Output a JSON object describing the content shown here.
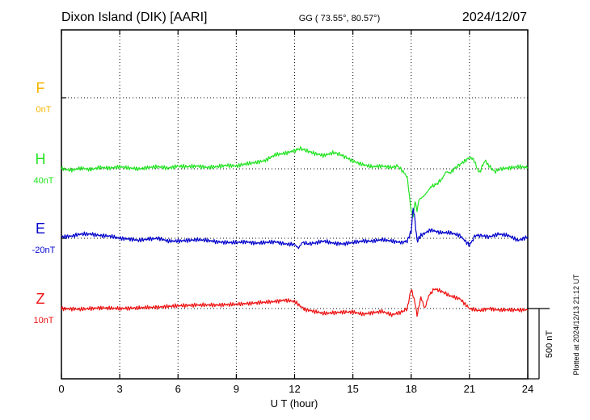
{
  "header": {
    "station": "Dixon Island (DIK)  [AARI]",
    "coords": "GG ( 73.55°,  80.57°)",
    "date": "2024/12/07"
  },
  "footer_note": "Plotted at 2024/12/13 21:12 UT",
  "scale_label": "500 nT",
  "chart_data": {
    "type": "line",
    "xlabel": "U T (hour)",
    "xlim": [
      0,
      24
    ],
    "x_ticks": [
      0,
      3,
      6,
      9,
      12,
      15,
      18,
      21,
      24
    ],
    "grid": true,
    "scale_nT": 500,
    "series": [
      {
        "name": "F",
        "baseline_label": "0nT",
        "color": "#f5b400",
        "points": []
      },
      {
        "name": "H",
        "baseline_label": "40nT",
        "color": "#22e322",
        "points": [
          [
            0,
            0
          ],
          [
            0.5,
            -10
          ],
          [
            1,
            5
          ],
          [
            1.5,
            -5
          ],
          [
            2,
            10
          ],
          [
            2.5,
            5
          ],
          [
            3,
            15
          ],
          [
            3.5,
            5
          ],
          [
            4,
            0
          ],
          [
            4.5,
            10
          ],
          [
            5,
            15
          ],
          [
            5.5,
            5
          ],
          [
            6,
            20
          ],
          [
            6.5,
            15
          ],
          [
            7,
            20
          ],
          [
            7.5,
            10
          ],
          [
            8,
            15
          ],
          [
            8.5,
            25
          ],
          [
            9,
            20
          ],
          [
            9.5,
            35
          ],
          [
            10,
            45
          ],
          [
            10.5,
            60
          ],
          [
            11,
            100
          ],
          [
            11.5,
            110
          ],
          [
            12,
            130
          ],
          [
            12.3,
            145
          ],
          [
            12.6,
            130
          ],
          [
            13,
            110
          ],
          [
            13.5,
            95
          ],
          [
            14,
            115
          ],
          [
            14.3,
            105
          ],
          [
            14.6,
            85
          ],
          [
            15,
            55
          ],
          [
            15.5,
            30
          ],
          [
            16,
            15
          ],
          [
            16.5,
            20
          ],
          [
            17,
            10
          ],
          [
            17.3,
            20
          ],
          [
            17.6,
            -20
          ],
          [
            17.8,
            -60
          ],
          [
            18,
            -300
          ],
          [
            18.1,
            -340
          ],
          [
            18.2,
            -230
          ],
          [
            18.3,
            -300
          ],
          [
            18.4,
            -220
          ],
          [
            18.6,
            -200
          ],
          [
            18.8,
            -170
          ],
          [
            19,
            -130
          ],
          [
            19.3,
            -110
          ],
          [
            19.6,
            -70
          ],
          [
            19.8,
            -20
          ],
          [
            20,
            -30
          ],
          [
            20.3,
            10
          ],
          [
            20.6,
            40
          ],
          [
            21,
            80
          ],
          [
            21.2,
            70
          ],
          [
            21.5,
            -30
          ],
          [
            21.8,
            60
          ],
          [
            22,
            20
          ],
          [
            22.3,
            -20
          ],
          [
            22.6,
            0
          ],
          [
            23,
            5
          ],
          [
            23.5,
            15
          ],
          [
            24,
            10
          ]
        ]
      },
      {
        "name": "E",
        "baseline_label": "-20nT",
        "color": "#0000cc",
        "points": [
          [
            0,
            10
          ],
          [
            0.5,
            15
          ],
          [
            1,
            30
          ],
          [
            1.5,
            30
          ],
          [
            2,
            20
          ],
          [
            2.5,
            15
          ],
          [
            3,
            0
          ],
          [
            3.5,
            -5
          ],
          [
            4,
            -15
          ],
          [
            4.5,
            -5
          ],
          [
            5,
            0
          ],
          [
            5.5,
            -20
          ],
          [
            6,
            -20
          ],
          [
            6.5,
            -15
          ],
          [
            7,
            -10
          ],
          [
            7.5,
            -15
          ],
          [
            8,
            -25
          ],
          [
            8.5,
            -30
          ],
          [
            9,
            -30
          ],
          [
            9.5,
            -25
          ],
          [
            10,
            -35
          ],
          [
            10.5,
            -30
          ],
          [
            11,
            -25
          ],
          [
            11.5,
            -40
          ],
          [
            12,
            -45
          ],
          [
            12.2,
            -70
          ],
          [
            12.4,
            -30
          ],
          [
            12.7,
            -40
          ],
          [
            13,
            -35
          ],
          [
            13.5,
            -20
          ],
          [
            14,
            -35
          ],
          [
            14.5,
            -40
          ],
          [
            15,
            -30
          ],
          [
            15.5,
            -20
          ],
          [
            16,
            -20
          ],
          [
            16.5,
            -10
          ],
          [
            17,
            -20
          ],
          [
            17.5,
            -30
          ],
          [
            17.8,
            -20
          ],
          [
            18,
            50
          ],
          [
            18.1,
            220
          ],
          [
            18.2,
            120
          ],
          [
            18.3,
            -20
          ],
          [
            18.5,
            20
          ],
          [
            19,
            60
          ],
          [
            19.5,
            40
          ],
          [
            20,
            40
          ],
          [
            20.5,
            20
          ],
          [
            21,
            -50
          ],
          [
            21.3,
            20
          ],
          [
            21.6,
            20
          ],
          [
            22,
            10
          ],
          [
            22.5,
            30
          ],
          [
            23,
            20
          ],
          [
            23.5,
            -15
          ],
          [
            24,
            10
          ]
        ]
      },
      {
        "name": "Z",
        "baseline_label": "10nT",
        "color": "#ee1111",
        "points": [
          [
            0,
            0
          ],
          [
            1,
            -5
          ],
          [
            2,
            5
          ],
          [
            3,
            0
          ],
          [
            4,
            5
          ],
          [
            5,
            10
          ],
          [
            6,
            20
          ],
          [
            7,
            25
          ],
          [
            8,
            25
          ],
          [
            9,
            30
          ],
          [
            10,
            40
          ],
          [
            11,
            50
          ],
          [
            11.5,
            60
          ],
          [
            12,
            50
          ],
          [
            12.5,
            -5
          ],
          [
            13,
            -20
          ],
          [
            13.5,
            -35
          ],
          [
            14,
            -30
          ],
          [
            14.5,
            -25
          ],
          [
            15,
            -25
          ],
          [
            15.5,
            -40
          ],
          [
            16,
            -30
          ],
          [
            16.5,
            -20
          ],
          [
            17,
            -45
          ],
          [
            17.5,
            -25
          ],
          [
            17.8,
            0
          ],
          [
            18,
            140
          ],
          [
            18.2,
            40
          ],
          [
            18.3,
            -50
          ],
          [
            18.5,
            80
          ],
          [
            18.7,
            0
          ],
          [
            18.9,
            90
          ],
          [
            19.2,
            140
          ],
          [
            19.6,
            120
          ],
          [
            20,
            90
          ],
          [
            20.5,
            70
          ],
          [
            21,
            0
          ],
          [
            21.5,
            -15
          ],
          [
            22,
            0
          ],
          [
            22.5,
            -10
          ],
          [
            23,
            -10
          ],
          [
            24,
            -10
          ]
        ]
      }
    ]
  },
  "colors": {
    "F": "#f5b400",
    "H": "#22e322",
    "E": "#0000cc",
    "Z": "#ee1111"
  }
}
